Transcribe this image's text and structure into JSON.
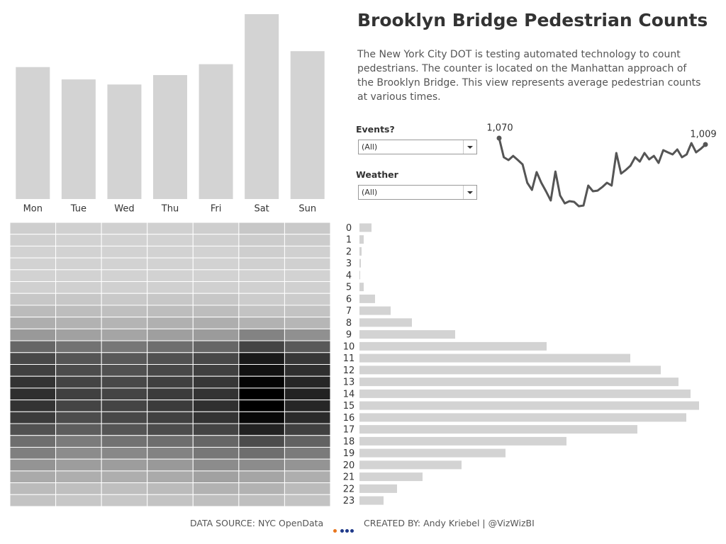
{
  "header": {
    "title": "Brooklyn Bridge Pedestrian Counts",
    "description": "The New York City DOT is testing automated technology to count pedestrians. The counter is located on the Manhattan approach of the Brooklyn Bridge. This view represents average pedestrian counts at various times."
  },
  "filters": [
    {
      "label": "Events?",
      "value": "(All)"
    },
    {
      "label": "Weather",
      "value": "(All)"
    }
  ],
  "footer": {
    "source": "DATA SOURCE: NYC OpenData",
    "credit": "CREATED BY: Andy Kriebel | @VizWizBI"
  },
  "chart_data": [
    {
      "type": "bar",
      "orientation": "vertical",
      "categories": [
        "Mon",
        "Tue",
        "Wed",
        "Thu",
        "Fri",
        "Sat",
        "Sun"
      ],
      "values": [
        182,
        165,
        158,
        171,
        186,
        255,
        204
      ],
      "color": "#d3d3d3",
      "ylim": [
        0,
        255
      ]
    },
    {
      "type": "line",
      "values": [
        1070,
        887,
        860,
        900,
        860,
        819,
        643,
        575,
        745,
        643,
        562,
        473,
        751,
        521,
        446,
        467,
        460,
        419,
        426,
        616,
        562,
        568,
        602,
        643,
        616,
        928,
        731,
        765,
        806,
        887,
        846,
        928,
        867,
        900,
        833,
        955,
        934,
        914,
        962,
        887,
        914,
        1023,
        934,
        968,
        1009
      ],
      "value_labels": [
        "1,070",
        null,
        null,
        null,
        null,
        null,
        null,
        null,
        null,
        null,
        null,
        null,
        null,
        null,
        null,
        null,
        null,
        null,
        null,
        null,
        null,
        null,
        null,
        null,
        null,
        null,
        null,
        null,
        null,
        null,
        null,
        null,
        null,
        null,
        null,
        null,
        null,
        null,
        null,
        null,
        null,
        null,
        null,
        null,
        "1,009"
      ],
      "color": "#555555",
      "ylim": [
        400,
        1100
      ]
    },
    {
      "type": "heatmap",
      "values": [
        [
          3,
          2,
          2,
          2,
          3,
          6,
          5
        ],
        [
          2,
          1,
          1,
          1,
          2,
          4,
          4
        ],
        [
          1,
          1,
          1,
          1,
          1,
          3,
          2
        ],
        [
          1,
          1,
          1,
          1,
          1,
          2,
          2
        ],
        [
          1,
          1,
          1,
          1,
          1,
          1,
          1
        ],
        [
          2,
          2,
          2,
          2,
          2,
          2,
          2
        ],
        [
          6,
          6,
          5,
          6,
          6,
          4,
          4
        ],
        [
          12,
          11,
          10,
          11,
          11,
          8,
          8
        ],
        [
          18,
          16,
          15,
          17,
          18,
          16,
          14
        ],
        [
          28,
          24,
          22,
          25,
          27,
          38,
          32
        ],
        [
          52,
          46,
          44,
          48,
          52,
          68,
          58
        ],
        [
          66,
          60,
          58,
          62,
          66,
          88,
          74
        ],
        [
          70,
          64,
          62,
          66,
          70,
          92,
          78
        ],
        [
          76,
          68,
          66,
          70,
          74,
          98,
          82
        ],
        [
          78,
          70,
          68,
          72,
          76,
          100,
          84
        ],
        [
          76,
          68,
          68,
          72,
          78,
          100,
          82
        ],
        [
          72,
          64,
          66,
          70,
          76,
          96,
          80
        ],
        [
          62,
          56,
          60,
          64,
          68,
          84,
          70
        ],
        [
          48,
          42,
          46,
          48,
          52,
          64,
          54
        ],
        [
          40,
          34,
          36,
          38,
          44,
          48,
          42
        ],
        [
          30,
          26,
          26,
          28,
          34,
          34,
          30
        ],
        [
          20,
          18,
          18,
          20,
          24,
          22,
          18
        ],
        [
          12,
          10,
          10,
          12,
          16,
          16,
          12
        ],
        [
          8,
          6,
          6,
          8,
          10,
          10,
          8
        ]
      ],
      "clim": [
        0,
        100
      ],
      "colors": [
        "#d4d4d4",
        "#000000"
      ]
    },
    {
      "type": "bar",
      "orientation": "horizontal",
      "categories": [
        "0",
        "1",
        "2",
        "3",
        "4",
        "5",
        "6",
        "7",
        "8",
        "9",
        "10",
        "11",
        "12",
        "13",
        "14",
        "15",
        "16",
        "17",
        "18",
        "19",
        "20",
        "21",
        "22",
        "23"
      ],
      "values": [
        17,
        6,
        3,
        2,
        1,
        6,
        22,
        44,
        74,
        135,
        264,
        382,
        425,
        450,
        467,
        479,
        461,
        392,
        292,
        206,
        144,
        89,
        53,
        34
      ],
      "color": "#d3d3d3",
      "xlim": [
        0,
        480
      ]
    }
  ]
}
